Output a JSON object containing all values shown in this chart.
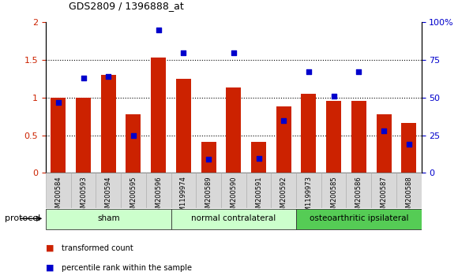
{
  "title": "GDS2809 / 1396888_at",
  "categories": [
    "GSM200584",
    "GSM200593",
    "GSM200594",
    "GSM200595",
    "GSM200596",
    "GSM1199974",
    "GSM200589",
    "GSM200590",
    "GSM200591",
    "GSM200592",
    "GSM1199973",
    "GSM200585",
    "GSM200586",
    "GSM200587",
    "GSM200588"
  ],
  "red_values": [
    1.0,
    1.0,
    1.3,
    0.78,
    1.53,
    1.25,
    0.41,
    1.13,
    0.41,
    0.88,
    1.05,
    0.96,
    0.96,
    0.78,
    0.66
  ],
  "blue_values_pct": [
    47,
    63,
    64,
    25,
    95,
    80,
    9,
    80,
    9.5,
    35,
    67,
    51,
    67,
    28,
    19
  ],
  "groups": [
    {
      "label": "sham",
      "start": 0,
      "end": 4,
      "color": "#ccffcc"
    },
    {
      "label": "normal contralateral",
      "start": 5,
      "end": 9,
      "color": "#ccffcc"
    },
    {
      "label": "osteoarthritic ipsilateral",
      "start": 10,
      "end": 14,
      "color": "#55cc55"
    }
  ],
  "left_ylim": [
    0,
    2
  ],
  "right_ylim": [
    0,
    100
  ],
  "left_yticks": [
    0,
    0.5,
    1.0,
    1.5,
    2.0
  ],
  "right_yticks": [
    0,
    25,
    50,
    75,
    100
  ],
  "right_yticklabels": [
    "0",
    "25",
    "50",
    "75",
    "100%"
  ],
  "bar_color": "#cc2200",
  "dot_color": "#0000cc",
  "protocol_label": "protocol",
  "legend_red": "transformed count",
  "legend_blue": "percentile rank within the sample",
  "background_color": "#ffffff",
  "plot_bg_color": "#ffffff",
  "xtick_bg_color": "#d8d8d8"
}
